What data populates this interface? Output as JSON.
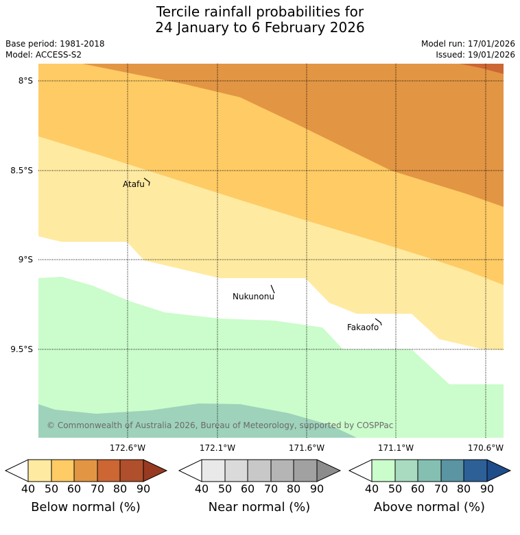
{
  "title": {
    "line1": "Tercile rainfall probabilities for",
    "line2": "24 January to 6 February 2026"
  },
  "meta": {
    "base_period": "Base period: 1981-2018",
    "model": "Model: ACCESS-S2",
    "model_run": "Model run: 17/01/2026",
    "issued": "Issued: 19/01/2026"
  },
  "map": {
    "lat_labels": [
      "8°S",
      "8.5°S",
      "9°S",
      "9.5°S"
    ],
    "lon_labels": [
      "172.6°W",
      "172.1°W",
      "171.6°W",
      "171.1°W",
      "170.6°W"
    ],
    "places": [
      "Atafu",
      "Nukunonu",
      "Fakaofo"
    ],
    "copyright": "© Commonwealth of Australia 2026, Bureau of Meteorology, supported by COSPPac",
    "region_colors": {
      "below_50": "#ffeaa1",
      "below_60": "#fecb65",
      "below_70": "#e29543",
      "below_80": "#cc6633",
      "near_normal": "#ffffff",
      "above_40": "#cbfccb",
      "above_50": "#9ed2bb"
    }
  },
  "colorbars": [
    {
      "title": "Below normal (%)",
      "ticks": [
        "40",
        "50",
        "60",
        "70",
        "80",
        "90"
      ],
      "colors": [
        "#ffffff",
        "#ffeaa1",
        "#fecb65",
        "#e29543",
        "#cc6633",
        "#b04f2b",
        "#983a22"
      ]
    },
    {
      "title": "Near normal (%)",
      "ticks": [
        "40",
        "50",
        "60",
        "70",
        "80",
        "90"
      ],
      "colors": [
        "#ffffff",
        "#e9e9e9",
        "#dadada",
        "#c8c8c8",
        "#b5b5b5",
        "#a1a1a1",
        "#8c8c8c"
      ]
    },
    {
      "title": "Above normal (%)",
      "ticks": [
        "40",
        "50",
        "60",
        "70",
        "80",
        "90"
      ],
      "colors": [
        "#ffffff",
        "#cbfccb",
        "#a8dbbf",
        "#84bfb2",
        "#5b94a3",
        "#2e6098",
        "#1e4d8a"
      ]
    }
  ]
}
